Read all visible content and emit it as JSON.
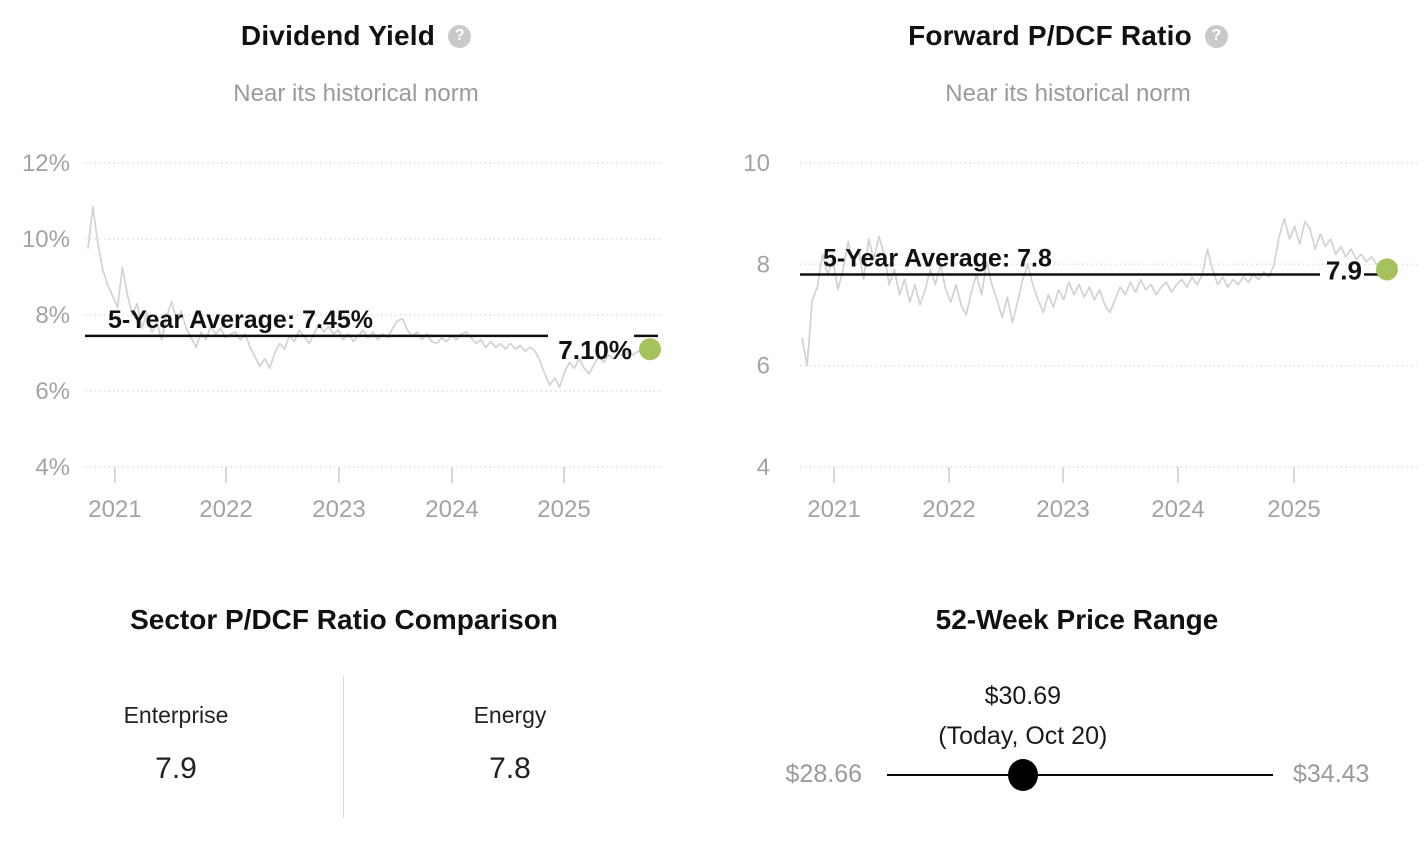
{
  "colors": {
    "accent_green": "#a6c25c",
    "series_gray": "#d2d2d2",
    "grid_gray": "#dcdcdc",
    "axis_label_gray": "#a3a3a3",
    "subtitle_gray": "#9a9a9a",
    "average_line_black": "#111111",
    "help_icon_gray": "#c9c9c9"
  },
  "chart_data": [
    {
      "type": "line",
      "title": "Dividend Yield",
      "help_glyph": "?",
      "subtitle": "Near its historical norm",
      "ylim": [
        4,
        12
      ],
      "y_ticks": [
        {
          "value": 12,
          "label": "12%"
        },
        {
          "value": 10,
          "label": "10%"
        },
        {
          "value": 8,
          "label": "8%"
        },
        {
          "value": 6,
          "label": "6%"
        },
        {
          "value": 4,
          "label": "4%"
        }
      ],
      "x_ticks": [
        "2021",
        "2022",
        "2023",
        "2024",
        "2025"
      ],
      "average": {
        "value": 7.45,
        "label": "5-Year Average: 7.45%"
      },
      "current": {
        "value": 7.1,
        "label": "7.10%"
      },
      "values": [
        9.75,
        10.85,
        9.9,
        9.2,
        8.8,
        8.5,
        8.2,
        9.25,
        8.55,
        8.0,
        8.3,
        7.65,
        8.05,
        7.55,
        7.8,
        7.35,
        7.95,
        8.35,
        7.9,
        8.1,
        7.65,
        7.4,
        7.15,
        7.55,
        7.35,
        7.7,
        7.5,
        7.65,
        7.4,
        7.5,
        7.55,
        7.35,
        7.5,
        7.15,
        6.9,
        6.65,
        6.85,
        6.6,
        7.0,
        7.25,
        7.1,
        7.45,
        7.3,
        7.6,
        7.45,
        7.25,
        7.5,
        7.75,
        7.55,
        7.7,
        7.5,
        7.6,
        7.35,
        7.5,
        7.3,
        7.45,
        7.6,
        7.4,
        7.55,
        7.35,
        7.5,
        7.4,
        7.65,
        7.85,
        7.9,
        7.6,
        7.45,
        7.55,
        7.35,
        7.5,
        7.3,
        7.25,
        7.4,
        7.3,
        7.45,
        7.35,
        7.5,
        7.55,
        7.4,
        7.25,
        7.35,
        7.15,
        7.3,
        7.15,
        7.25,
        7.1,
        7.25,
        7.1,
        7.2,
        7.05,
        7.15,
        7.05,
        6.8,
        6.45,
        6.15,
        6.35,
        6.1,
        6.5,
        6.75,
        6.6,
        6.85,
        6.6,
        6.45,
        6.7,
        6.9,
        6.75,
        6.95,
        6.85,
        7.0,
        6.9,
        7.05,
        6.95,
        7.05,
        7.0,
        7.1
      ]
    },
    {
      "type": "line",
      "title": "Forward P/DCF Ratio",
      "help_glyph": "?",
      "subtitle": "Near its historical norm",
      "ylim": [
        4,
        10
      ],
      "y_ticks": [
        {
          "value": 10,
          "label": "10"
        },
        {
          "value": 8,
          "label": "8"
        },
        {
          "value": 6,
          "label": "6"
        },
        {
          "value": 4,
          "label": "4"
        }
      ],
      "x_ticks": [
        "2021",
        "2022",
        "2023",
        "2024",
        "2025"
      ],
      "average": {
        "value": 7.8,
        "label": "5-Year Average: 7.8"
      },
      "current": {
        "value": 7.9,
        "label": "7.9"
      },
      "values": [
        6.55,
        6.0,
        7.3,
        7.55,
        8.2,
        7.8,
        8.1,
        7.5,
        7.9,
        8.45,
        8.0,
        8.3,
        7.7,
        8.5,
        8.1,
        8.55,
        8.2,
        7.6,
        7.9,
        7.4,
        7.7,
        7.25,
        7.6,
        7.2,
        7.5,
        7.9,
        7.6,
        8.0,
        7.5,
        7.25,
        7.6,
        7.2,
        7.0,
        7.45,
        7.8,
        7.4,
        8.05,
        7.6,
        7.3,
        6.95,
        7.35,
        6.85,
        7.25,
        7.7,
        8.0,
        7.6,
        7.3,
        7.05,
        7.4,
        7.15,
        7.5,
        7.3,
        7.65,
        7.4,
        7.6,
        7.35,
        7.55,
        7.3,
        7.5,
        7.2,
        7.05,
        7.3,
        7.55,
        7.4,
        7.65,
        7.45,
        7.7,
        7.5,
        7.6,
        7.4,
        7.55,
        7.65,
        7.45,
        7.6,
        7.7,
        7.55,
        7.75,
        7.6,
        7.8,
        8.3,
        7.9,
        7.6,
        7.75,
        7.55,
        7.7,
        7.6,
        7.75,
        7.65,
        7.8,
        7.7,
        7.85,
        7.75,
        8.0,
        8.55,
        8.9,
        8.5,
        8.75,
        8.4,
        8.85,
        8.7,
        8.3,
        8.6,
        8.35,
        8.5,
        8.2,
        8.35,
        8.15,
        8.3,
        8.1,
        8.2,
        8.05,
        8.15,
        8.0,
        7.95,
        7.9
      ]
    }
  ],
  "sector_comparison": {
    "title": "Sector P/DCF Ratio Comparison",
    "items": [
      {
        "label": "Enterprise",
        "value": "7.9"
      },
      {
        "label": "Energy",
        "value": "7.8"
      }
    ]
  },
  "price_range": {
    "title": "52-Week Price Range",
    "current_label": "$30.69",
    "current_sub": "(Today, Oct 20)",
    "current_value": 30.69,
    "min_label": "$28.66",
    "min_value": 28.66,
    "max_label": "$34.43",
    "max_value": 34.43
  }
}
